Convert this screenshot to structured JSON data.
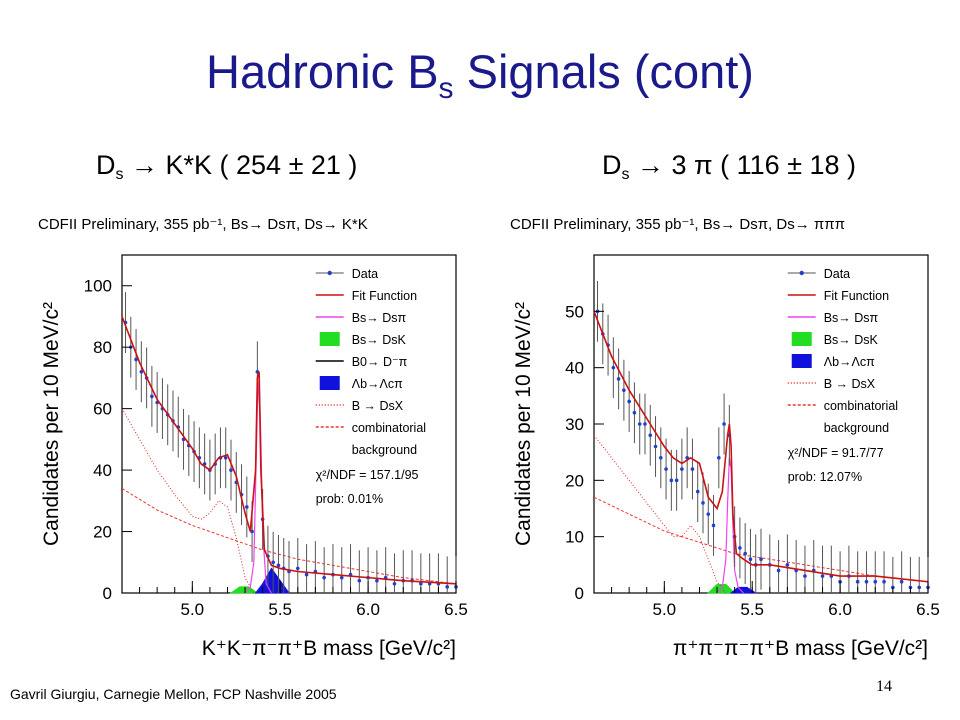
{
  "slide": {
    "title_main": "Hadronic B",
    "title_sub": "s",
    "title_rest": " Signals (cont)",
    "subtitle_left": {
      "D": "D",
      "s": "s",
      "rest": " → K*K ( 254 ± 21 )"
    },
    "subtitle_right": {
      "D": "D",
      "s": "s",
      "rest": " → 3 π ( 116 ± 18 )"
    },
    "footer_left": "Gavril Giurgiu, Carnegie Mellon, FCP Nashville 2005",
    "page_number": "14"
  },
  "chart_data": [
    {
      "type": "line",
      "title": "CDFII Preliminary, 355 pb⁻¹, Bs→ Dsπ, Ds→ K*K",
      "ylabel": "Candidates per 10 MeV/c²",
      "xlabel": "K⁺K⁻π⁻π⁺B mass [GeV/c²]",
      "xlim": [
        4.6,
        6.5
      ],
      "ylim": [
        0,
        110
      ],
      "xticks": [
        "5.0",
        "5.5",
        "6.0",
        "6.5"
      ],
      "yticks": [
        "0",
        "20",
        "40",
        "60",
        "80",
        "100"
      ],
      "legend": [
        "Data",
        "Fit Function",
        "Bs→ Dsπ",
        "Bs→ DsK",
        "B0→ D⁻π",
        "Λb→Λcπ",
        "B → DsX",
        "combinatorial",
        "background"
      ],
      "stats": [
        "χ²/NDF = 157.1/95",
        "prob:   0.01%"
      ],
      "series": [
        {
          "name": "Data",
          "x": [
            4.62,
            4.65,
            4.68,
            4.71,
            4.74,
            4.77,
            4.8,
            4.83,
            4.86,
            4.89,
            4.92,
            4.95,
            4.98,
            5.01,
            5.04,
            5.07,
            5.1,
            5.13,
            5.16,
            5.19,
            5.22,
            5.25,
            5.28,
            5.31,
            5.34,
            5.37,
            5.4,
            5.43,
            5.46,
            5.49,
            5.52,
            5.55,
            5.6,
            5.65,
            5.7,
            5.75,
            5.8,
            5.85,
            5.9,
            5.95,
            6.0,
            6.05,
            6.1,
            6.15,
            6.2,
            6.25,
            6.3,
            6.35,
            6.4,
            6.45,
            6.5
          ],
          "y": [
            88,
            80,
            76,
            72,
            70,
            64,
            62,
            60,
            58,
            56,
            54,
            50,
            48,
            46,
            44,
            42,
            40,
            42,
            44,
            44,
            40,
            36,
            32,
            28,
            20,
            72,
            24,
            12,
            10,
            9,
            8,
            7,
            8,
            6,
            7,
            5,
            6,
            5,
            6,
            4,
            5,
            4,
            5,
            3,
            4,
            4,
            3,
            3,
            3,
            2,
            2
          ]
        },
        {
          "name": "Fit Function",
          "x": [
            4.6,
            4.7,
            4.8,
            4.9,
            5.0,
            5.05,
            5.1,
            5.15,
            5.2,
            5.25,
            5.3,
            5.33,
            5.36,
            5.37,
            5.38,
            5.39,
            5.41,
            5.45,
            5.5,
            5.6,
            5.8,
            6.0,
            6.2,
            6.5
          ],
          "y": [
            90,
            75,
            63,
            55,
            47,
            42,
            40,
            44,
            45,
            38,
            26,
            20,
            40,
            70,
            72,
            40,
            14,
            9,
            8,
            7,
            6,
            5,
            4,
            3
          ]
        },
        {
          "name": "Bs→ Dsπ",
          "x": [
            5.3,
            5.33,
            5.35,
            5.36,
            5.37,
            5.38,
            5.39,
            5.4,
            5.42,
            5.45
          ],
          "y": [
            0,
            2,
            10,
            35,
            60,
            70,
            50,
            20,
            3,
            0
          ]
        },
        {
          "name": "B → DsX",
          "x": [
            4.6,
            4.7,
            4.8,
            4.9,
            5.0,
            5.05,
            5.1,
            5.15,
            5.2,
            5.25,
            5.3,
            5.35
          ],
          "y": [
            60,
            50,
            40,
            32,
            25,
            24,
            26,
            30,
            28,
            18,
            5,
            0
          ]
        },
        {
          "name": "combinatorial",
          "x": [
            4.6,
            4.8,
            5.0,
            5.2,
            5.4,
            5.6,
            5.8,
            6.0,
            6.2,
            6.5
          ],
          "y": [
            34,
            27,
            22,
            18,
            14,
            11,
            9,
            7,
            5,
            3
          ]
        },
        {
          "name": "Bs→ DsK",
          "x": [
            5.22,
            5.27,
            5.32,
            5.37
          ],
          "y": [
            0,
            2,
            2,
            0
          ]
        },
        {
          "name": "Λb→Λcπ",
          "x": [
            5.36,
            5.4,
            5.45,
            5.5,
            5.55
          ],
          "y": [
            0,
            3,
            8,
            4,
            0
          ]
        }
      ]
    },
    {
      "type": "line",
      "title": "CDFII Preliminary, 355 pb⁻¹, Bs→ Dsπ, Ds→ πππ",
      "ylabel": "Candidates per 10 MeV/c²",
      "xlabel": "π⁺π⁻π⁻π⁺B mass [GeV/c²]",
      "xlim": [
        4.6,
        6.5
      ],
      "ylim": [
        0,
        60
      ],
      "xticks": [
        "5.0",
        "5.5",
        "6.0",
        "6.5"
      ],
      "yticks": [
        "0",
        "10",
        "20",
        "30",
        "40",
        "50"
      ],
      "legend": [
        "Data",
        "Fit Function",
        "Bs→ Dsπ",
        "Bs→ DsK",
        "Λb→Λcπ",
        "B → DsX",
        "combinatorial",
        "background"
      ],
      "stats": [
        "χ²/NDF = 91.7/77",
        "prob:  12.07%"
      ],
      "series": [
        {
          "name": "Data",
          "x": [
            4.62,
            4.65,
            4.68,
            4.71,
            4.74,
            4.77,
            4.8,
            4.83,
            4.86,
            4.89,
            4.92,
            4.95,
            4.98,
            5.01,
            5.04,
            5.07,
            5.1,
            5.13,
            5.16,
            5.19,
            5.22,
            5.25,
            5.28,
            5.31,
            5.34,
            5.37,
            5.4,
            5.43,
            5.46,
            5.49,
            5.52,
            5.55,
            5.6,
            5.65,
            5.7,
            5.75,
            5.8,
            5.85,
            5.9,
            5.95,
            6.0,
            6.05,
            6.1,
            6.15,
            6.2,
            6.25,
            6.3,
            6.35,
            6.4,
            6.45,
            6.5
          ],
          "y": [
            50,
            46,
            44,
            40,
            38,
            36,
            34,
            32,
            30,
            30,
            28,
            26,
            24,
            22,
            20,
            20,
            22,
            24,
            22,
            18,
            16,
            14,
            12,
            24,
            30,
            28,
            10,
            8,
            7,
            6,
            5,
            6,
            5,
            4,
            5,
            4,
            3,
            4,
            3,
            3,
            2,
            3,
            2,
            2,
            2,
            2,
            1,
            2,
            1,
            1,
            1
          ]
        },
        {
          "name": "Fit Function",
          "x": [
            4.6,
            4.7,
            4.8,
            4.9,
            5.0,
            5.05,
            5.1,
            5.15,
            5.2,
            5.25,
            5.3,
            5.33,
            5.36,
            5.37,
            5.38,
            5.39,
            5.41,
            5.45,
            5.5,
            5.6,
            5.8,
            6.0,
            6.2,
            6.5
          ],
          "y": [
            50,
            42,
            36,
            31,
            26,
            24,
            23,
            24,
            23,
            17,
            15,
            18,
            28,
            30,
            26,
            14,
            7,
            6,
            5,
            5,
            4,
            3,
            3,
            2
          ]
        },
        {
          "name": "Bs→ Dsπ",
          "x": [
            5.3,
            5.33,
            5.35,
            5.36,
            5.37,
            5.38,
            5.39,
            5.4,
            5.42,
            5.45
          ],
          "y": [
            0,
            1,
            6,
            16,
            24,
            22,
            12,
            4,
            1,
            0
          ]
        },
        {
          "name": "B → DsX",
          "x": [
            4.6,
            4.7,
            4.8,
            4.9,
            5.0,
            5.05,
            5.1,
            5.15,
            5.2,
            5.25,
            5.3,
            5.35
          ],
          "y": [
            28,
            24,
            20,
            16,
            12,
            10,
            10,
            12,
            10,
            6,
            2,
            0
          ]
        },
        {
          "name": "combinatorial",
          "x": [
            4.6,
            4.8,
            5.0,
            5.2,
            5.4,
            5.6,
            5.8,
            6.0,
            6.2,
            6.5
          ],
          "y": [
            17,
            14,
            11,
            9,
            7,
            6,
            5,
            4,
            3,
            2
          ]
        },
        {
          "name": "Bs→ DsK",
          "x": [
            5.25,
            5.3,
            5.35,
            5.4
          ],
          "y": [
            0,
            1.5,
            1.5,
            0
          ]
        },
        {
          "name": "Λb→Λcπ",
          "x": [
            5.38,
            5.42,
            5.47,
            5.52
          ],
          "y": [
            0,
            1,
            1,
            0
          ]
        }
      ]
    }
  ],
  "colors": {
    "title": "#1a1a8c",
    "data": "#2040d0",
    "error": "#555555",
    "fit": "#cc1111",
    "signal": "#ee44ee",
    "dsk": "#22dd22",
    "lambda": "#1111dd",
    "b0": "#000000",
    "dsx": "#dd2222",
    "comb": "#ee3333"
  }
}
